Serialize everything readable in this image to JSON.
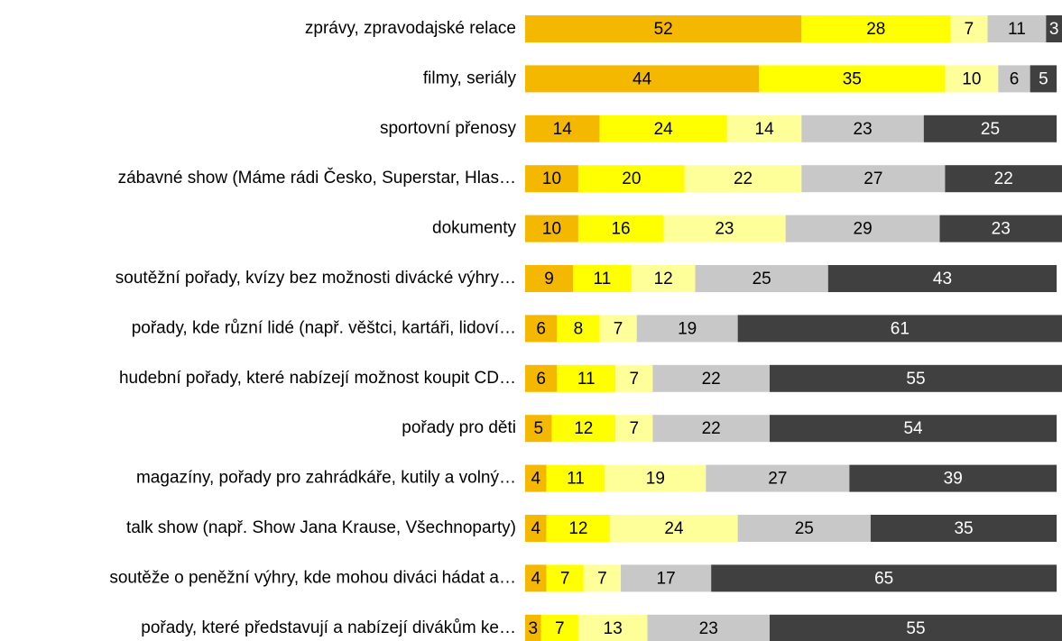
{
  "chart_data": {
    "type": "stacked-bar-horizontal",
    "categories": [
      "zprávy, zpravodajské relace",
      "filmy, seriály",
      "sportovní přenosy",
      "zábavné show (Máme rádi Česko, Superstar, Hlas…",
      "dokumenty",
      "soutěžní pořady, kvízy bez možnosti divácké výhry…",
      "pořady, kde různí lidé (např. věštci, kartáři, lidoví…",
      "hudební pořady, které nabízejí možnost koupit CD…",
      "pořady pro děti",
      "magazíny, pořady pro zahrádkáře, kutily a volný…",
      "talk show (např. Show Jana Krause, Všechnoparty)",
      "soutěže o peněžní výhry, kde mohou diváci hádat a…",
      "pořady, které představují a nabízejí divákům ke…"
    ],
    "xlim": [
      0,
      101
    ],
    "series": [
      {
        "color": "#f5b800",
        "values": [
          52,
          44,
          14,
          10,
          10,
          9,
          6,
          6,
          5,
          4,
          4,
          4,
          3
        ]
      },
      {
        "color": "#ffff00",
        "values": [
          28,
          35,
          24,
          20,
          16,
          11,
          8,
          11,
          12,
          11,
          12,
          7,
          7
        ]
      },
      {
        "color": "#ffff99",
        "values": [
          7,
          10,
          14,
          22,
          23,
          12,
          7,
          7,
          7,
          19,
          24,
          7,
          13
        ]
      },
      {
        "color": "#c8c8c8",
        "values": [
          11,
          6,
          23,
          27,
          29,
          25,
          19,
          22,
          22,
          27,
          25,
          17,
          23
        ]
      },
      {
        "color": "#404040",
        "values": [
          3,
          5,
          25,
          22,
          23,
          43,
          61,
          55,
          54,
          39,
          35,
          65,
          55
        ]
      }
    ]
  }
}
